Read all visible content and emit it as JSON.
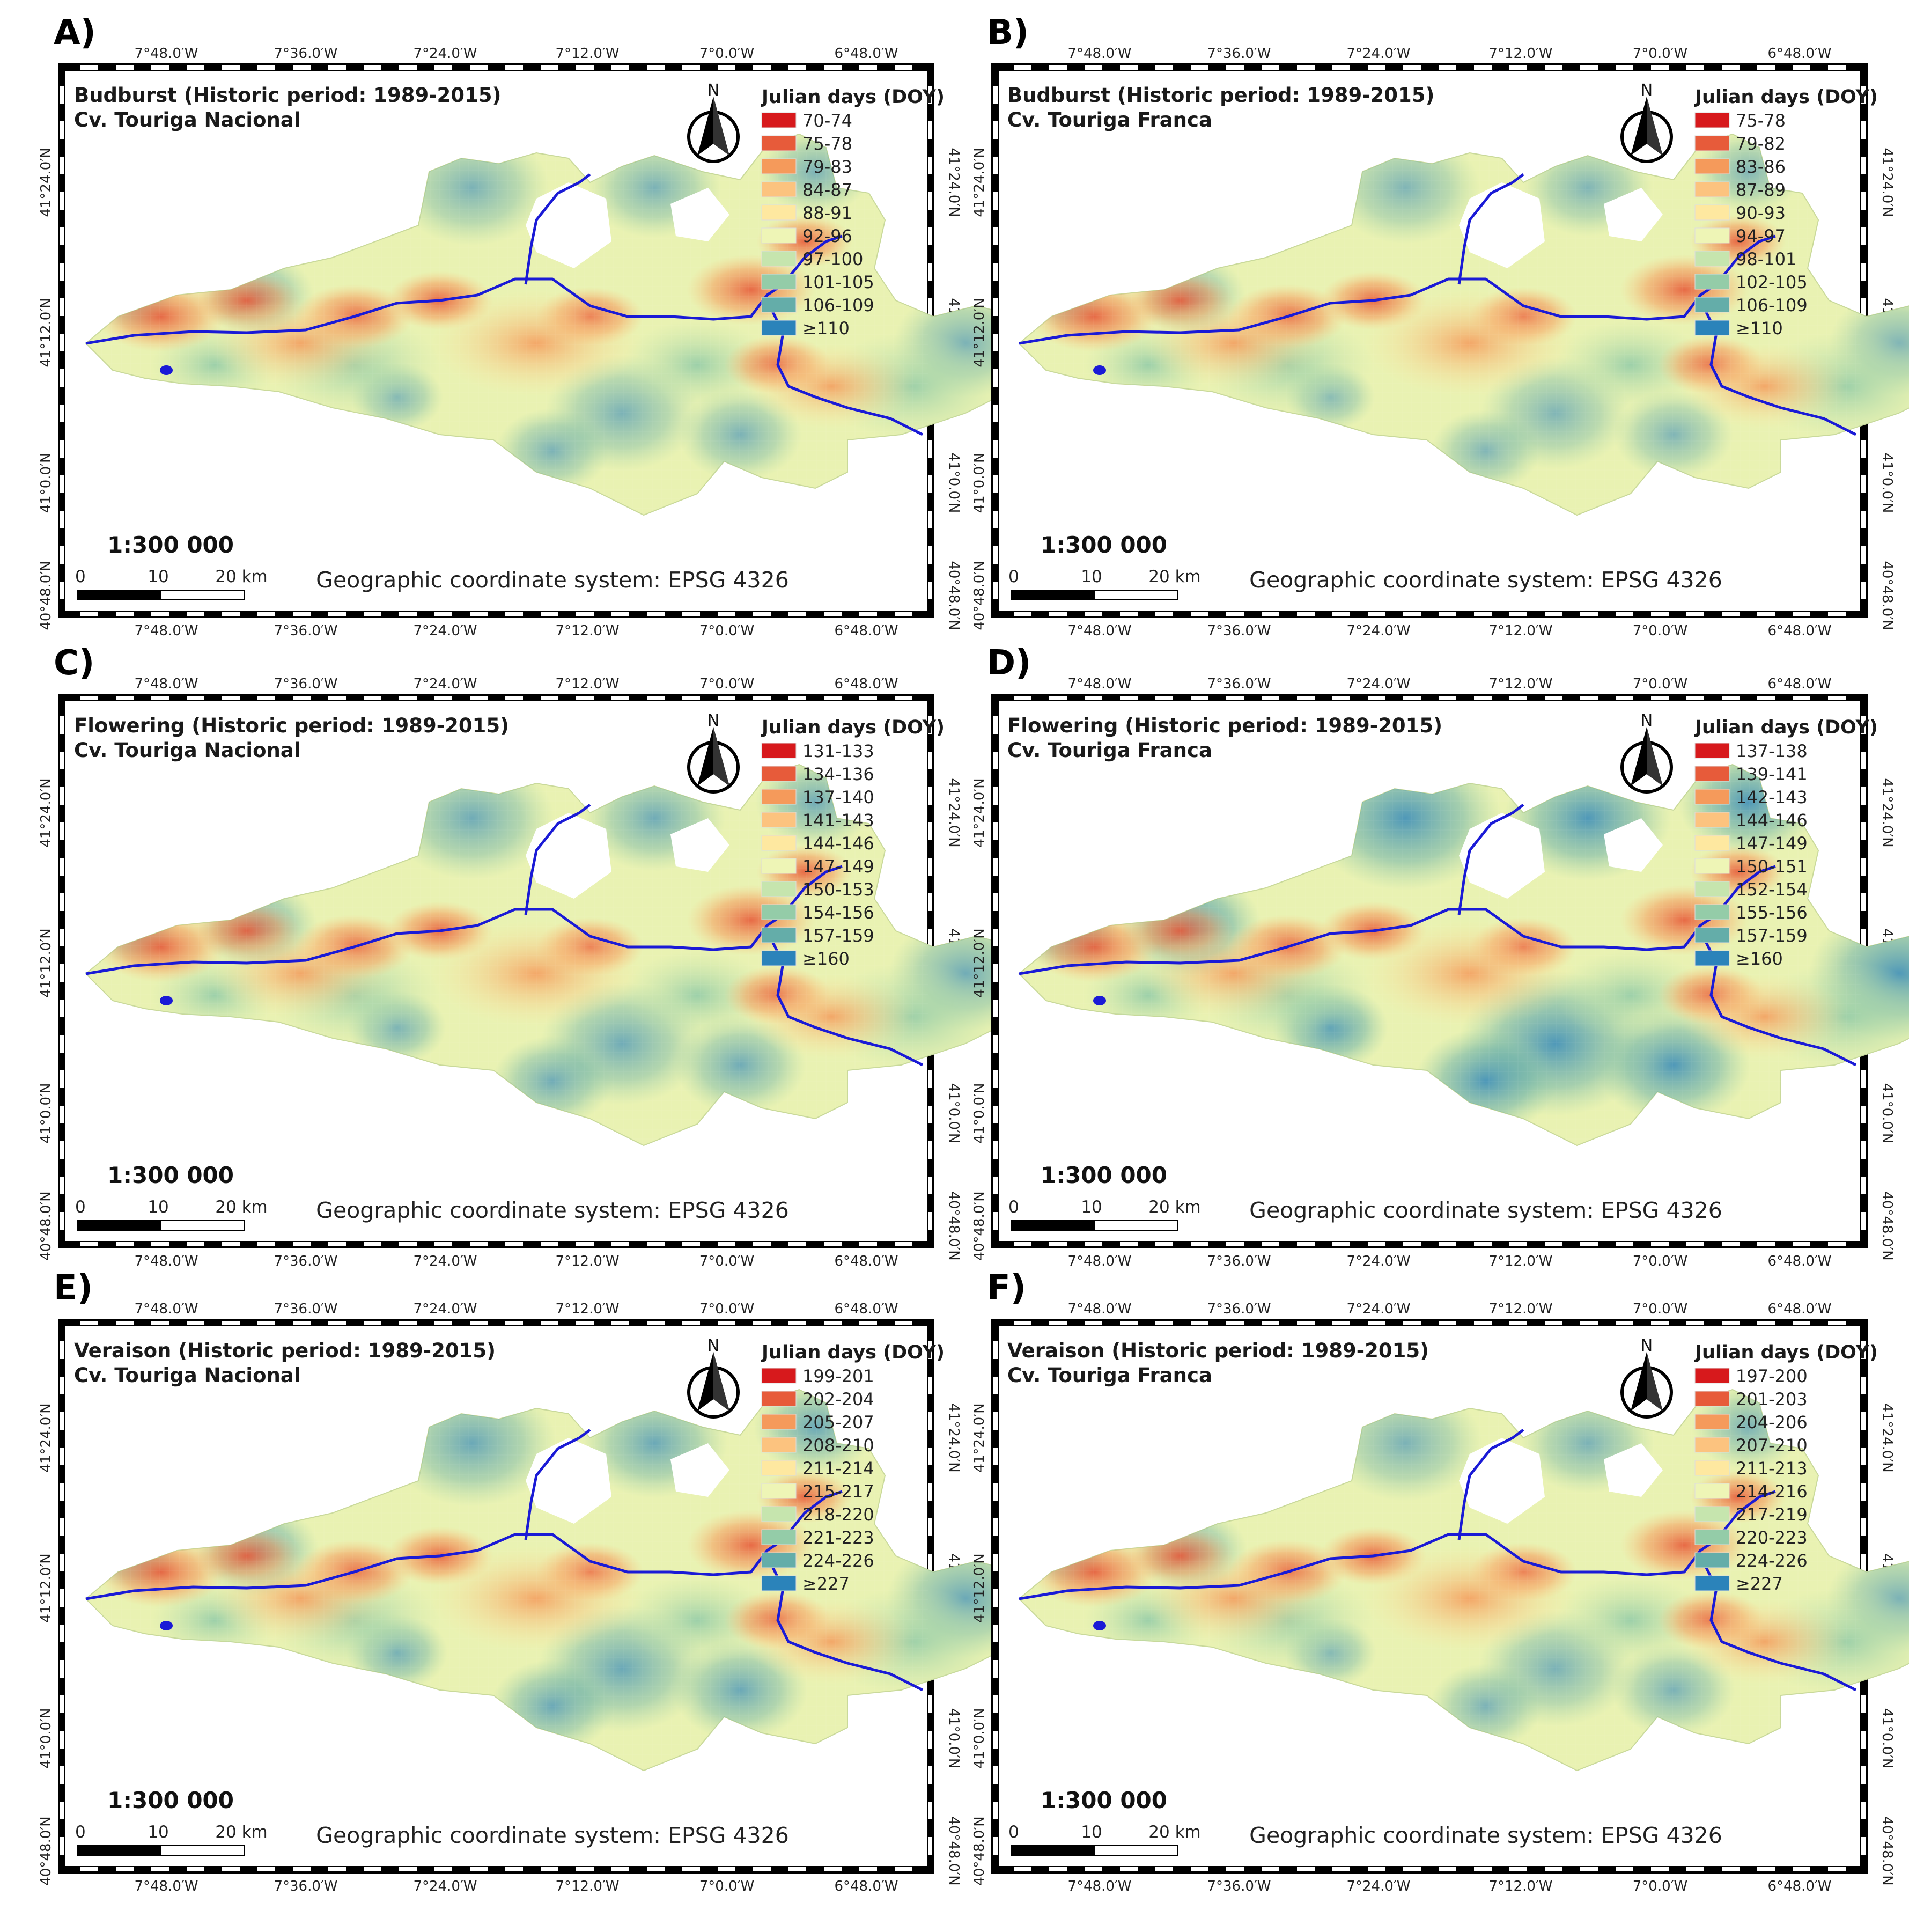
{
  "common": {
    "north_label": "N",
    "scale": "1:300 000",
    "scalebar_labels": [
      "0",
      "10",
      "20 km"
    ],
    "crs": "Geographic coordinate system: EPSG 4326",
    "legend_title": "Julian days (DOY)",
    "lon_labels": [
      "7°48.0′W",
      "7°36.0′W",
      "7°24.0′W",
      "7°12.0′W",
      "7°0.0′W",
      "6°48.0′W"
    ],
    "lat_labels": [
      "41°24.0′N",
      "41°12.0′N",
      "41°0.0′N",
      "40°48.0′N"
    ]
  },
  "class_colors": [
    "#d7191c",
    "#e75b3a",
    "#f59a5b",
    "#fcc37f",
    "#fee8a0",
    "#eef5b6",
    "#c6e5ae",
    "#94cca8",
    "#64ada9",
    "#2b83ba"
  ],
  "panels": [
    {
      "letter": "A)",
      "title_line1": "Budburst (Historic period: 1989-2015)",
      "title_line2": "Cv. Touriga Nacional",
      "legend": [
        "70-74",
        "75-78",
        "79-83",
        "84-87",
        "88-91",
        "92-96",
        "97-100",
        "101-105",
        "106-109",
        "≥110"
      ]
    },
    {
      "letter": "B)",
      "title_line1": "Budburst (Historic period: 1989-2015)",
      "title_line2": "Cv. Touriga Franca",
      "legend": [
        "75-78",
        "79-82",
        "83-86",
        "87-89",
        "90-93",
        "94-97",
        "98-101",
        "102-105",
        "106-109",
        "≥110"
      ]
    },
    {
      "letter": "C)",
      "title_line1": "Flowering (Historic period: 1989-2015)",
      "title_line2": "Cv. Touriga Nacional",
      "legend": [
        "131-133",
        "134-136",
        "137-140",
        "141-143",
        "144-146",
        "147-149",
        "150-153",
        "154-156",
        "157-159",
        "≥160"
      ]
    },
    {
      "letter": "D)",
      "title_line1": "Flowering (Historic period: 1989-2015)",
      "title_line2": "Cv. Touriga Franca",
      "legend": [
        "137-138",
        "139-141",
        "142-143",
        "144-146",
        "147-149",
        "150-151",
        "152-154",
        "155-156",
        "157-159",
        "≥160"
      ]
    },
    {
      "letter": "E)",
      "title_line1": "Veraison (Historic period: 1989-2015)",
      "title_line2": "Cv. Touriga Nacional",
      "legend": [
        "199-201",
        "202-204",
        "205-207",
        "208-210",
        "211-214",
        "215-217",
        "218-220",
        "221-223",
        "224-226",
        "≥227"
      ]
    },
    {
      "letter": "F)",
      "title_line1": "Veraison (Historic period: 1989-2015)",
      "title_line2": "Cv. Touriga Franca",
      "legend": [
        "197-200",
        "201-203",
        "204-206",
        "207-210",
        "211-213",
        "214-216",
        "217-219",
        "220-223",
        "224-226",
        "≥227"
      ]
    }
  ]
}
